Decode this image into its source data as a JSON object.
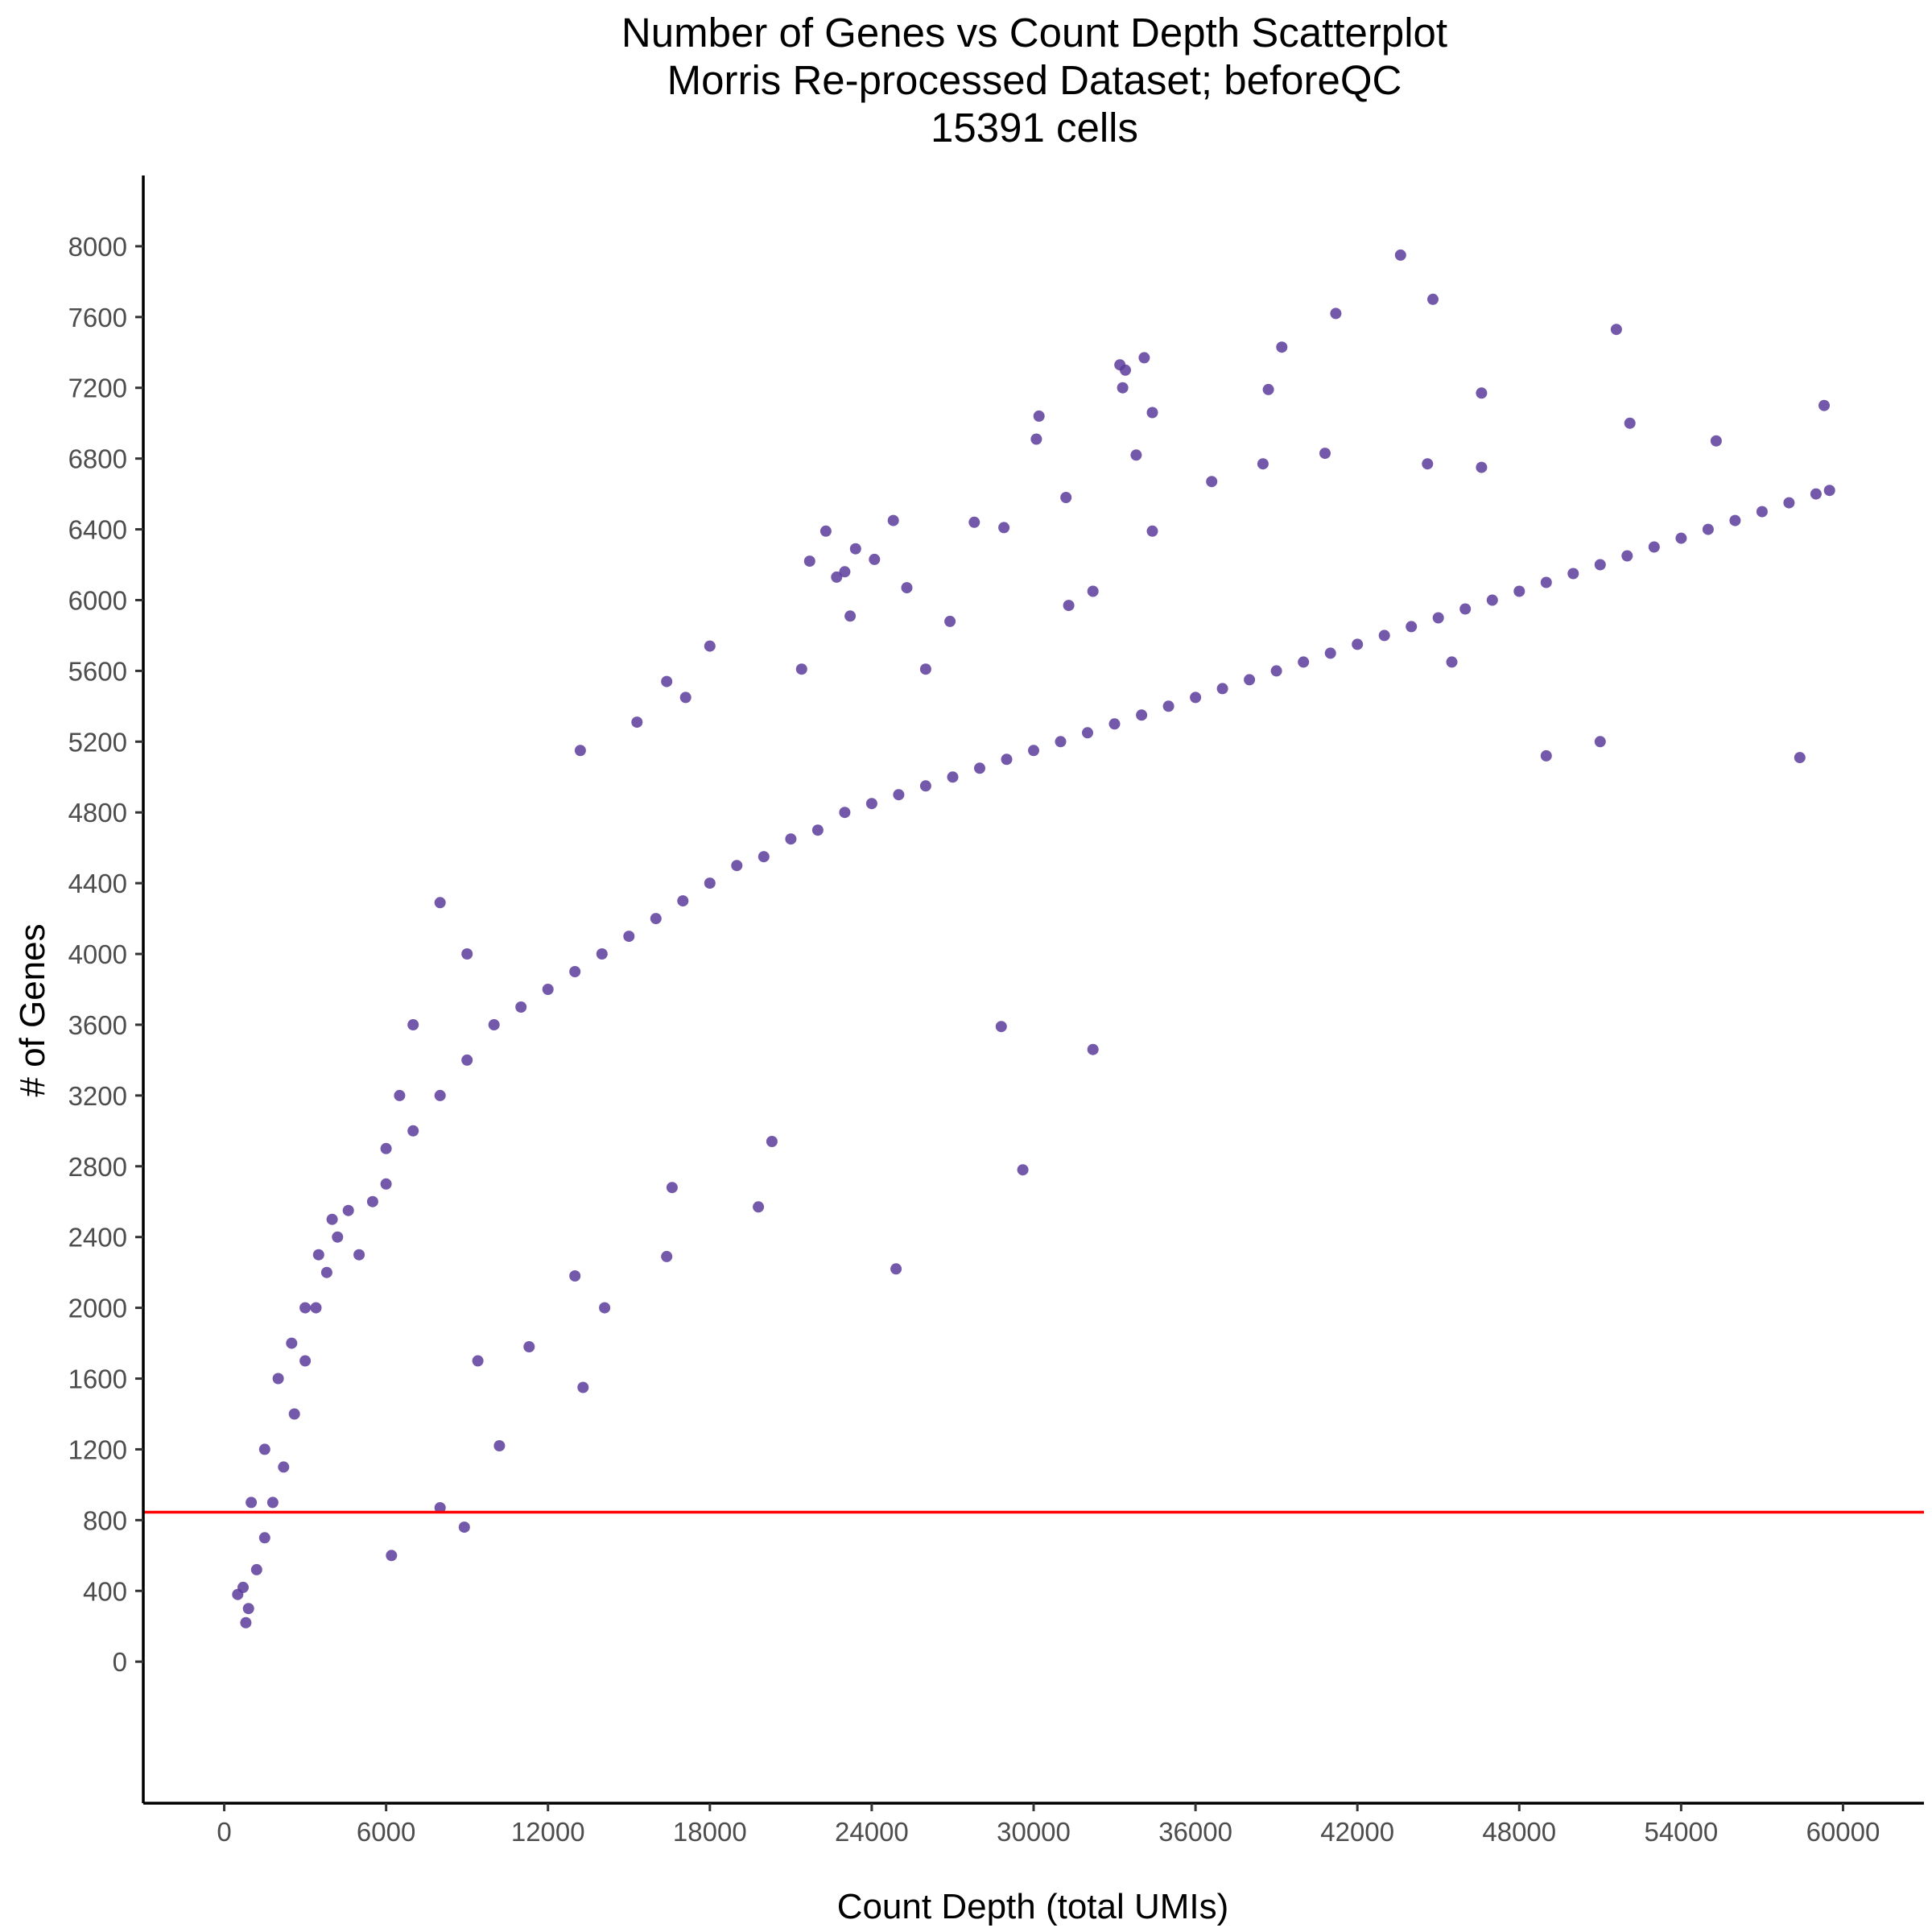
{
  "chart_data": {
    "type": "scatter",
    "title_lines": [
      "Number of Genes vs Count Depth Scatterplot",
      "Morris Re-processed Dataset; beforeQC",
      "15391 cells"
    ],
    "xlabel": "Count Depth (total UMIs)",
    "ylabel": "# of Genes",
    "xlim": [
      -3000,
      63000
    ],
    "ylim": [
      -800,
      8400
    ],
    "x_ticks": [
      0,
      6000,
      12000,
      18000,
      24000,
      30000,
      36000,
      42000,
      48000,
      54000,
      60000
    ],
    "y_ticks": [
      0,
      400,
      800,
      1200,
      1600,
      2000,
      2400,
      2800,
      3200,
      3600,
      4000,
      4400,
      4800,
      5200,
      5600,
      6000,
      6400,
      6800,
      7200,
      7600,
      8000
    ],
    "grid": false,
    "legend": "none",
    "point_color": "#5c3c9c",
    "threshold_line": {
      "y": 845,
      "color": "#ff0000"
    },
    "n_cells": 15391,
    "points": [
      [
        500,
        380
      ],
      [
        700,
        420
      ],
      [
        900,
        300
      ],
      [
        800,
        220
      ],
      [
        1200,
        520
      ],
      [
        1500,
        700
      ],
      [
        1800,
        900
      ],
      [
        2200,
        1100
      ],
      [
        2600,
        1400
      ],
      [
        3000,
        1700
      ],
      [
        3400,
        2000
      ],
      [
        3800,
        2200
      ],
      [
        4200,
        2400
      ],
      [
        4600,
        2550
      ],
      [
        5000,
        2300
      ],
      [
        6000,
        2700
      ],
      [
        7000,
        3000
      ],
      [
        8000,
        3200
      ],
      [
        9000,
        3400
      ],
      [
        10000,
        3600
      ],
      [
        11000,
        3700
      ],
      [
        12000,
        3800
      ],
      [
        13000,
        3900
      ],
      [
        14000,
        4000
      ],
      [
        15000,
        4100
      ],
      [
        16000,
        4200
      ],
      [
        17000,
        4300
      ],
      [
        18000,
        4400
      ],
      [
        19000,
        4500
      ],
      [
        20000,
        4550
      ],
      [
        21000,
        4650
      ],
      [
        22000,
        4700
      ],
      [
        23000,
        4800
      ],
      [
        24000,
        4850
      ],
      [
        25000,
        4900
      ],
      [
        26000,
        4950
      ],
      [
        27000,
        5000
      ],
      [
        28000,
        5050
      ],
      [
        29000,
        5100
      ],
      [
        30000,
        5150
      ],
      [
        31000,
        5200
      ],
      [
        32000,
        5250
      ],
      [
        33000,
        5300
      ],
      [
        34000,
        5350
      ],
      [
        35000,
        5400
      ],
      [
        36000,
        5450
      ],
      [
        37000,
        5500
      ],
      [
        38000,
        5550
      ],
      [
        39000,
        5600
      ],
      [
        40000,
        5650
      ],
      [
        41000,
        5700
      ],
      [
        42000,
        5750
      ],
      [
        43000,
        5800
      ],
      [
        44000,
        5850
      ],
      [
        45000,
        5900
      ],
      [
        46000,
        5950
      ],
      [
        47000,
        6000
      ],
      [
        48000,
        6050
      ],
      [
        49000,
        6100
      ],
      [
        50000,
        6150
      ],
      [
        51000,
        6200
      ],
      [
        52000,
        6250
      ],
      [
        53000,
        6300
      ],
      [
        54000,
        6350
      ],
      [
        55000,
        6400
      ],
      [
        56000,
        6450
      ],
      [
        57000,
        6500
      ],
      [
        58000,
        6550
      ],
      [
        59000,
        6600
      ],
      [
        59500,
        6620
      ],
      [
        43600,
        7950
      ],
      [
        44800,
        7700
      ],
      [
        41200,
        7620
      ],
      [
        51600,
        7530
      ],
      [
        39200,
        7430
      ],
      [
        34100,
        7370
      ],
      [
        33200,
        7330
      ],
      [
        33400,
        7300
      ],
      [
        33300,
        7200
      ],
      [
        38700,
        7190
      ],
      [
        46600,
        7170
      ],
      [
        59300,
        7100
      ],
      [
        30200,
        7040
      ],
      [
        34400,
        7060
      ],
      [
        52100,
        7000
      ],
      [
        30100,
        6910
      ],
      [
        55300,
        6900
      ],
      [
        33800,
        6820
      ],
      [
        40800,
        6830
      ],
      [
        38500,
        6770
      ],
      [
        44600,
        6770
      ],
      [
        46600,
        6750
      ],
      [
        31200,
        6580
      ],
      [
        36600,
        6670
      ],
      [
        24800,
        6450
      ],
      [
        27800,
        6440
      ],
      [
        34400,
        6390
      ],
      [
        28900,
        6410
      ],
      [
        22300,
        6390
      ],
      [
        21700,
        6220
      ],
      [
        23400,
        6290
      ],
      [
        24100,
        6230
      ],
      [
        23000,
        6160
      ],
      [
        22700,
        6130
      ],
      [
        25300,
        6070
      ],
      [
        32200,
        6050
      ],
      [
        31300,
        5970
      ],
      [
        23200,
        5910
      ],
      [
        26900,
        5880
      ],
      [
        18000,
        5740
      ],
      [
        16400,
        5540
      ],
      [
        17100,
        5450
      ],
      [
        26000,
        5610
      ],
      [
        21400,
        5610
      ],
      [
        15300,
        5310
      ],
      [
        13200,
        5150
      ],
      [
        8000,
        4290
      ],
      [
        9000,
        4000
      ],
      [
        7000,
        3600
      ],
      [
        6500,
        3200
      ],
      [
        6000,
        2900
      ],
      [
        5500,
        2600
      ],
      [
        4000,
        2500
      ],
      [
        3500,
        2300
      ],
      [
        3000,
        2000
      ],
      [
        2500,
        1800
      ],
      [
        2000,
        1600
      ],
      [
        1500,
        1200
      ],
      [
        1000,
        900
      ],
      [
        8000,
        870
      ],
      [
        8900,
        760
      ],
      [
        6200,
        600
      ],
      [
        13300,
        1550
      ],
      [
        10200,
        1220
      ],
      [
        11300,
        1780
      ],
      [
        9400,
        1700
      ],
      [
        24900,
        2220
      ],
      [
        29600,
        2780
      ],
      [
        32200,
        3460
      ],
      [
        19800,
        2570
      ],
      [
        16400,
        2290
      ],
      [
        13000,
        2180
      ],
      [
        14100,
        2000
      ],
      [
        58400,
        5110
      ],
      [
        49000,
        5120
      ],
      [
        51000,
        5200
      ],
      [
        45500,
        5650
      ],
      [
        28800,
        3590
      ],
      [
        20300,
        2940
      ],
      [
        16600,
        2680
      ]
    ]
  }
}
